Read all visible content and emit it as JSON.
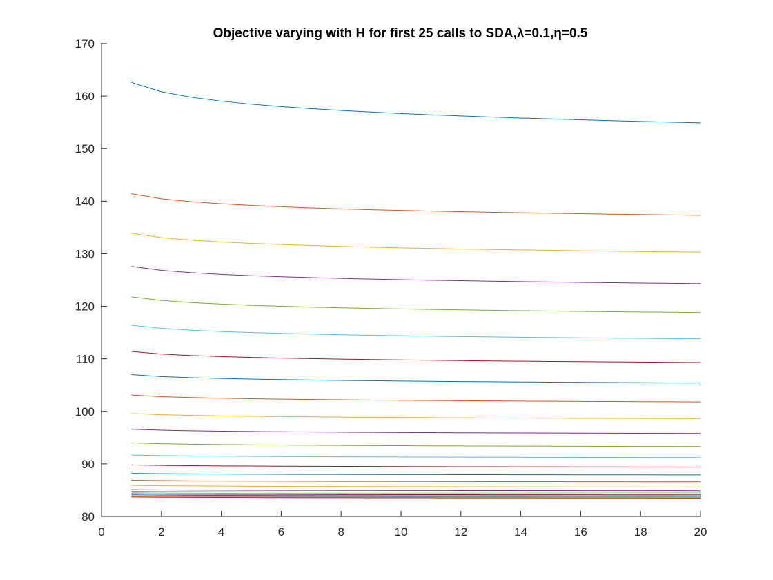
{
  "chart_data": {
    "type": "line",
    "title": "Objective varying with H for first 25 calls to SDA,λ=0.1,η=0.5",
    "xlabel": "",
    "ylabel": "",
    "xlim": [
      0,
      20
    ],
    "ylim": [
      80,
      170
    ],
    "xticks": [
      0,
      2,
      4,
      6,
      8,
      10,
      12,
      14,
      16,
      18,
      20
    ],
    "yticks": [
      80,
      90,
      100,
      110,
      120,
      130,
      140,
      150,
      160,
      170
    ],
    "grid": false,
    "legend": "none",
    "x_range": [
      1,
      20
    ],
    "color_cycle": [
      "#0072BD",
      "#D95319",
      "#EDB120",
      "#7E2F8E",
      "#77AC30",
      "#4DBEEE",
      "#A2142F"
    ],
    "series": [
      {
        "start": 162.6,
        "end": 154.9
      },
      {
        "start": 141.4,
        "end": 137.3
      },
      {
        "start": 133.9,
        "end": 130.3
      },
      {
        "start": 127.6,
        "end": 124.3
      },
      {
        "start": 121.8,
        "end": 118.8
      },
      {
        "start": 116.4,
        "end": 113.8
      },
      {
        "start": 111.4,
        "end": 109.3
      },
      {
        "start": 107.0,
        "end": 105.4
      },
      {
        "start": 103.1,
        "end": 101.8
      },
      {
        "start": 99.6,
        "end": 98.6
      },
      {
        "start": 96.6,
        "end": 95.8
      },
      {
        "start": 94.0,
        "end": 93.3
      },
      {
        "start": 91.7,
        "end": 91.2
      },
      {
        "start": 89.8,
        "end": 89.4
      },
      {
        "start": 88.2,
        "end": 87.9
      },
      {
        "start": 86.9,
        "end": 86.6
      },
      {
        "start": 85.9,
        "end": 85.6
      },
      {
        "start": 85.1,
        "end": 84.9
      },
      {
        "start": 84.8,
        "end": 84.6
      },
      {
        "start": 84.5,
        "end": 84.3
      },
      {
        "start": 84.3,
        "end": 84.1
      },
      {
        "start": 84.1,
        "end": 83.9
      },
      {
        "start": 83.9,
        "end": 83.7
      },
      {
        "start": 83.8,
        "end": 83.6
      },
      {
        "start": 83.7,
        "end": 83.5
      }
    ]
  }
}
